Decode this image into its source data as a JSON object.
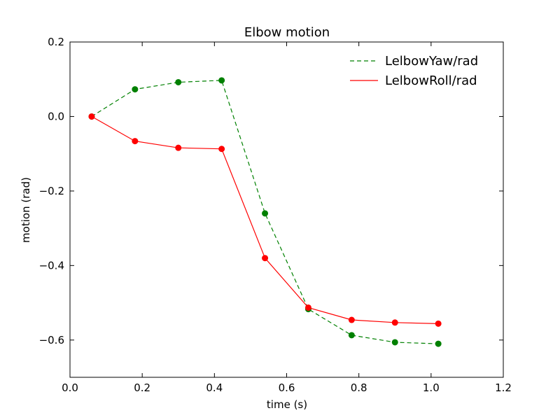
{
  "chart_data": {
    "type": "line",
    "title": "Elbow motion",
    "xlabel": "time (s)",
    "ylabel": "motion (rad)",
    "xlim": [
      0.0,
      1.2
    ],
    "ylim": [
      -0.7,
      0.2
    ],
    "xticks": [
      0.0,
      0.2,
      0.4,
      0.6,
      0.8,
      1.0,
      1.2
    ],
    "yticks": [
      0.2,
      0.0,
      -0.2,
      -0.4,
      -0.6
    ],
    "xtick_labels": [
      "0.0",
      "0.2",
      "0.4",
      "0.6",
      "0.8",
      "1.0",
      "1.2"
    ],
    "ytick_labels": [
      "0.2",
      "0.0",
      "−0.2",
      "−0.4",
      "−0.6"
    ],
    "grid": false,
    "legend_position": "top-right",
    "x": [
      0.06,
      0.18,
      0.3,
      0.42,
      0.54,
      0.66,
      0.78,
      0.9,
      1.02
    ],
    "series": [
      {
        "name": "LelbowYaw/rad",
        "color": "#008000",
        "line_style": "dashed",
        "marker": "circle",
        "values": [
          0.0,
          0.073,
          0.092,
          0.097,
          -0.26,
          -0.517,
          -0.587,
          -0.606,
          -0.61
        ]
      },
      {
        "name": "LelbowRoll/rad",
        "color": "#ff0000",
        "line_style": "solid",
        "marker": "circle",
        "values": [
          0.0,
          -0.066,
          -0.084,
          -0.087,
          -0.38,
          -0.513,
          -0.546,
          -0.553,
          -0.556
        ]
      }
    ]
  }
}
